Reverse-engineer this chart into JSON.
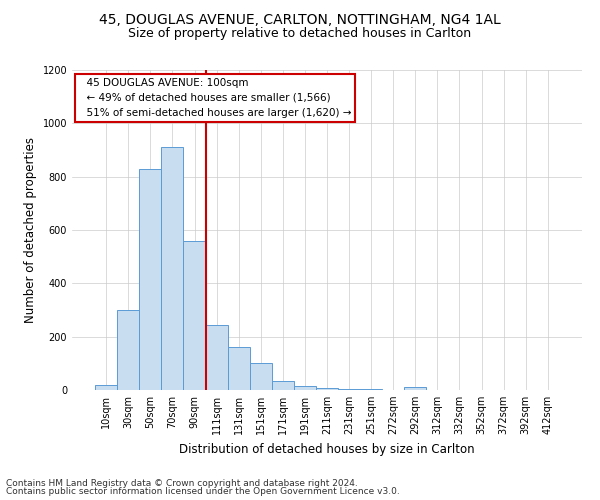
{
  "title_line1": "45, DOUGLAS AVENUE, CARLTON, NOTTINGHAM, NG4 1AL",
  "title_line2": "Size of property relative to detached houses in Carlton",
  "xlabel": "Distribution of detached houses by size in Carlton",
  "ylabel": "Number of detached properties",
  "bar_labels": [
    "10sqm",
    "30sqm",
    "50sqm",
    "70sqm",
    "90sqm",
    "111sqm",
    "131sqm",
    "151sqm",
    "171sqm",
    "191sqm",
    "211sqm",
    "231sqm",
    "251sqm",
    "272sqm",
    "292sqm",
    "312sqm",
    "332sqm",
    "352sqm",
    "372sqm",
    "392sqm",
    "412sqm"
  ],
  "bar_values": [
    20,
    300,
    830,
    910,
    560,
    245,
    160,
    100,
    35,
    15,
    8,
    3,
    3,
    0,
    10,
    0,
    0,
    0,
    0,
    0,
    0
  ],
  "bar_color": "#c9ddf0",
  "bar_edge_color": "#5b9bd5",
  "annotation_line1": "45 DOUGLAS AVENUE: 100sqm",
  "annotation_line2": "← 49% of detached houses are smaller (1,566)",
  "annotation_line3": "51% of semi-detached houses are larger (1,620) →",
  "annotation_box_color": "#ffffff",
  "annotation_box_edge_color": "#cc0000",
  "vline_color": "#cc0000",
  "ylim": [
    0,
    1200
  ],
  "yticks": [
    0,
    200,
    400,
    600,
    800,
    1000,
    1200
  ],
  "footer_line1": "Contains HM Land Registry data © Crown copyright and database right 2024.",
  "footer_line2": "Contains public sector information licensed under the Open Government Licence v3.0.",
  "title_fontsize": 10,
  "subtitle_fontsize": 9,
  "axis_label_fontsize": 8.5,
  "tick_fontsize": 7,
  "annotation_fontsize": 7.5,
  "footer_fontsize": 6.5
}
